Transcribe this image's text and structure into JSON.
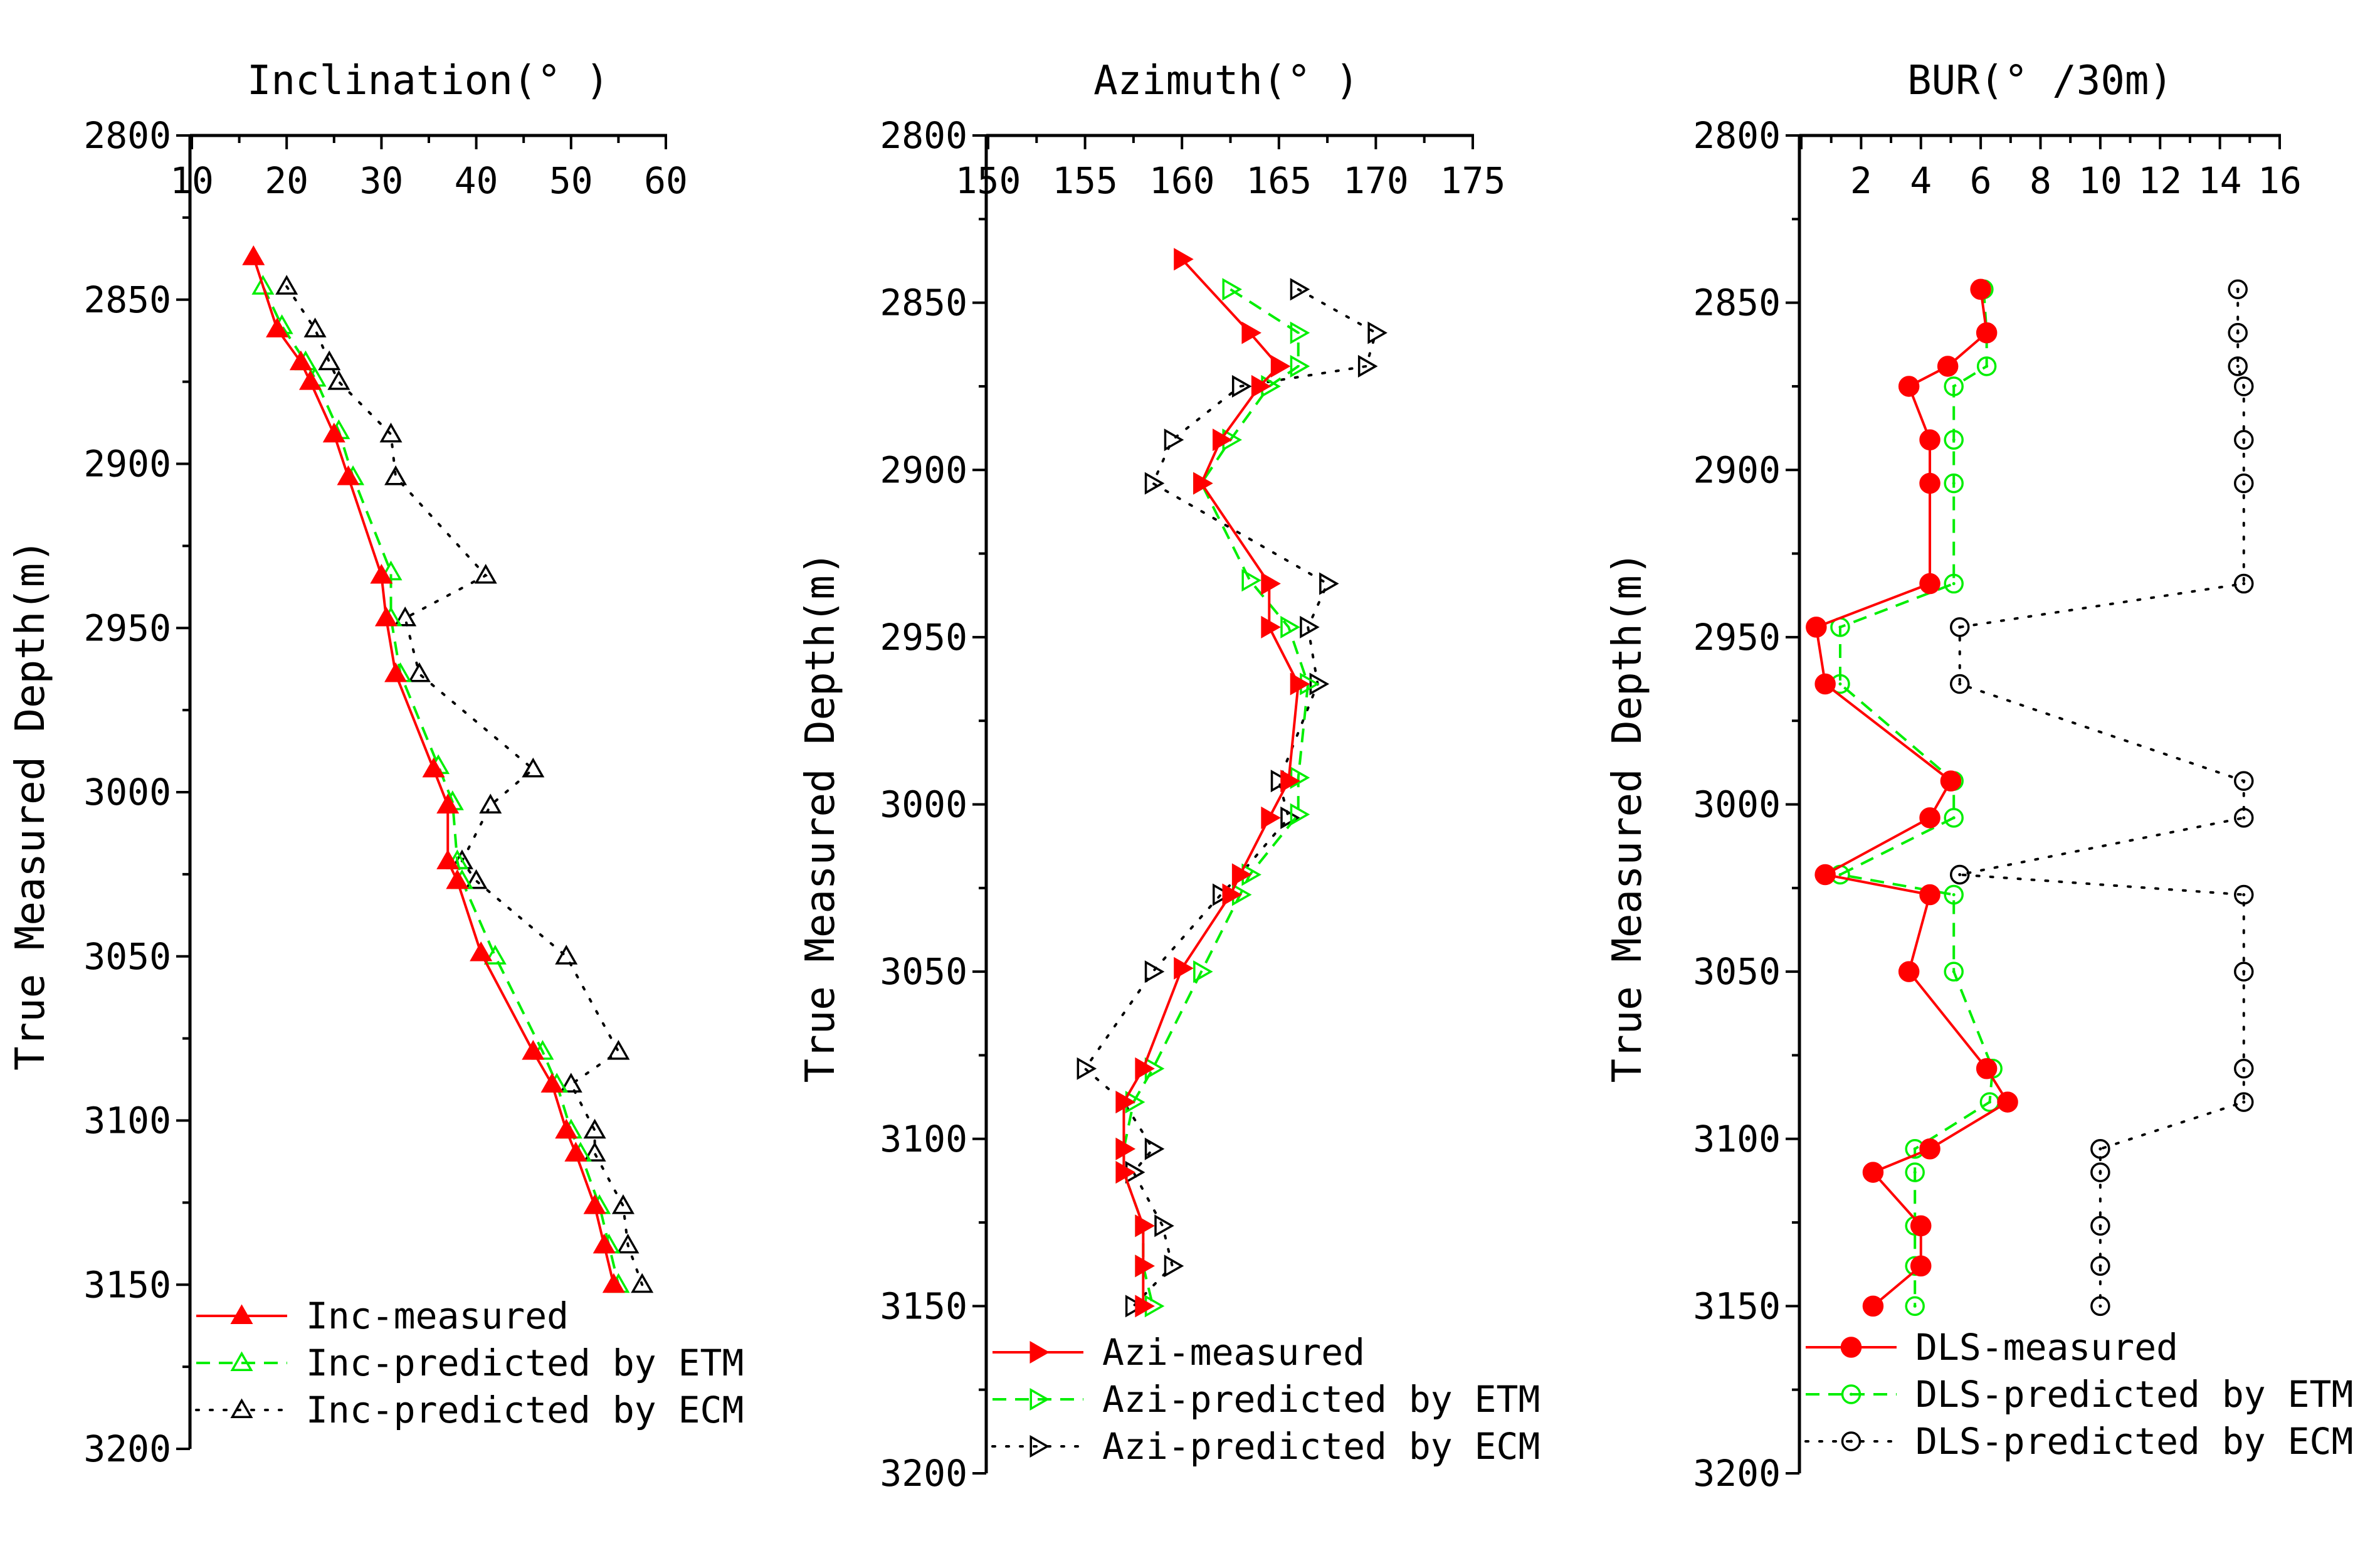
{
  "chart_data": [
    {
      "type": "line",
      "title": "Inclination(° )",
      "ylabel": "True Measured Depth(m)",
      "xlim": [
        10,
        60
      ],
      "xticks": [
        10,
        20,
        30,
        40,
        50,
        60
      ],
      "ylim": [
        2800,
        3200
      ],
      "yticks": [
        2800,
        2850,
        2900,
        2950,
        3000,
        3050,
        3100,
        3150,
        3200
      ],
      "legend_position": "bottom-left",
      "series": [
        {
          "name": "Inc-measured",
          "color": "#ff0000",
          "line": "solid",
          "marker": "triangle-up-filled",
          "points": [
            [
              16.5,
              2837
            ],
            [
              19,
              2859
            ],
            [
              21.5,
              2869
            ],
            [
              22.5,
              2875
            ],
            [
              25,
              2891
            ],
            [
              26.5,
              2904
            ],
            [
              30,
              2934
            ],
            [
              30.5,
              2947
            ],
            [
              31.5,
              2964
            ],
            [
              35.5,
              2993
            ],
            [
              37,
              3004
            ],
            [
              37,
              3021
            ],
            [
              38,
              3027
            ],
            [
              40.5,
              3049
            ],
            [
              46,
              3079
            ],
            [
              48,
              3089
            ],
            [
              49.5,
              3103
            ],
            [
              50.5,
              3110
            ],
            [
              52.5,
              3126
            ],
            [
              53.5,
              3138
            ],
            [
              54.5,
              3150
            ]
          ]
        },
        {
          "name": "Inc-predicted by ETM",
          "color": "#00ee00",
          "line": "dashed",
          "marker": "triangle-up-open",
          "points": [
            [
              17.5,
              2846
            ],
            [
              19.5,
              2858
            ],
            [
              22,
              2869
            ],
            [
              23,
              2874
            ],
            [
              25.5,
              2890
            ],
            [
              27,
              2904
            ],
            [
              31,
              2933
            ],
            [
              31,
              2947
            ],
            [
              32,
              2964
            ],
            [
              36,
              2992
            ],
            [
              37.5,
              3003
            ],
            [
              38,
              3021
            ],
            [
              38.5,
              3027
            ],
            [
              42,
              3050
            ],
            [
              47,
              3079
            ],
            [
              48.5,
              3089
            ],
            [
              50,
              3103
            ],
            [
              51,
              3110
            ],
            [
              53,
              3126
            ],
            [
              54,
              3138
            ],
            [
              55,
              3150
            ]
          ]
        },
        {
          "name": "Inc-predicted by ECM",
          "color": "#000000",
          "line": "dotted",
          "marker": "triangle-up-open",
          "points": [
            [
              20,
              2846
            ],
            [
              23,
              2859
            ],
            [
              24.5,
              2869
            ],
            [
              25.5,
              2875
            ],
            [
              31,
              2891
            ],
            [
              31.5,
              2904
            ],
            [
              41,
              2934
            ],
            [
              32.5,
              2947
            ],
            [
              34,
              2964
            ],
            [
              46,
              2993
            ],
            [
              41.5,
              3004
            ],
            [
              38.5,
              3021
            ],
            [
              40,
              3027
            ],
            [
              49.5,
              3050
            ],
            [
              55,
              3079
            ],
            [
              50,
              3089
            ],
            [
              52.5,
              3103
            ],
            [
              52.5,
              3110
            ],
            [
              55.5,
              3126
            ],
            [
              56,
              3138
            ],
            [
              57.5,
              3150
            ]
          ]
        }
      ],
      "legend": [
        "Inc-measured",
        "Inc-predicted by ETM",
        "Inc-predicted by ECM"
      ]
    },
    {
      "type": "line",
      "title": "Azimuth(° )",
      "ylabel": "True Measured Depth(m)",
      "xlim": [
        150,
        175
      ],
      "xticks": [
        150,
        155,
        160,
        165,
        170,
        175
      ],
      "ylim": [
        2800,
        3200
      ],
      "yticks": [
        2800,
        2850,
        2900,
        2950,
        3000,
        3050,
        3100,
        3150,
        3200
      ],
      "legend_position": "bottom-left",
      "series": [
        {
          "name": "Azi-measured",
          "color": "#ff0000",
          "line": "solid",
          "marker": "triangle-right-filled",
          "points": [
            [
              160,
              2837
            ],
            [
              163.5,
              2859
            ],
            [
              165,
              2869
            ],
            [
              164,
              2875
            ],
            [
              162,
              2891
            ],
            [
              161,
              2904
            ],
            [
              164.5,
              2934
            ],
            [
              164.5,
              2947
            ],
            [
              166,
              2964
            ],
            [
              165.5,
              2993
            ],
            [
              164.5,
              3004
            ],
            [
              163,
              3021
            ],
            [
              162.5,
              3027
            ],
            [
              160,
              3049
            ],
            [
              158,
              3079
            ],
            [
              157,
              3089
            ],
            [
              157,
              3103
            ],
            [
              157,
              3110
            ],
            [
              158,
              3126
            ],
            [
              158,
              3138
            ],
            [
              158,
              3150
            ]
          ]
        },
        {
          "name": "Azi-predicted by ETM",
          "color": "#00ee00",
          "line": "dashed",
          "marker": "triangle-right-open",
          "points": [
            [
              162.5,
              2846
            ],
            [
              166,
              2859
            ],
            [
              166,
              2869
            ],
            [
              164.5,
              2875
            ],
            [
              162.5,
              2891
            ],
            [
              161,
              2904
            ],
            [
              163.5,
              2933
            ],
            [
              165.5,
              2947
            ],
            [
              166.5,
              2964
            ],
            [
              166,
              2992
            ],
            [
              166,
              3003
            ],
            [
              163.5,
              3021
            ],
            [
              163,
              3027
            ],
            [
              161,
              3050
            ],
            [
              158.5,
              3079
            ],
            [
              157.5,
              3089
            ],
            [
              157,
              3103
            ],
            [
              157,
              3110
            ],
            [
              158,
              3126
            ],
            [
              158,
              3138
            ],
            [
              158.5,
              3150
            ]
          ]
        },
        {
          "name": "Azi-predicted by ECM",
          "color": "#000000",
          "line": "dotted",
          "marker": "triangle-right-open",
          "points": [
            [
              166,
              2846
            ],
            [
              170,
              2859
            ],
            [
              169.5,
              2869
            ],
            [
              163,
              2875
            ],
            [
              159.5,
              2891
            ],
            [
              158.5,
              2904
            ],
            [
              167.5,
              2934
            ],
            [
              166.5,
              2947
            ],
            [
              167,
              2964
            ],
            [
              165,
              2993
            ],
            [
              165.5,
              3004
            ],
            [
              163,
              3021
            ],
            [
              162,
              3027
            ],
            [
              158.5,
              3050
            ],
            [
              155,
              3079
            ],
            [
              157,
              3089
            ],
            [
              158.5,
              3103
            ],
            [
              157.5,
              3110
            ],
            [
              159,
              3126
            ],
            [
              159.5,
              3138
            ],
            [
              157.5,
              3150
            ]
          ]
        }
      ],
      "legend": [
        "Azi-measured",
        "Azi-predicted by ETM",
        "Azi-predicted by ECM"
      ]
    },
    {
      "type": "line",
      "title": "BUR(° /30m)",
      "ylabel": "True Measured Depth(m)",
      "xlim": [
        0,
        16
      ],
      "xticks": [
        2,
        4,
        6,
        8,
        10,
        12,
        14,
        16
      ],
      "ylim": [
        2800,
        3200
      ],
      "yticks": [
        2800,
        2850,
        2900,
        2950,
        3000,
        3050,
        3100,
        3150,
        3200
      ],
      "legend_position": "bottom-left",
      "series": [
        {
          "name": "DLS-measured",
          "color": "#ff0000",
          "line": "solid",
          "marker": "circle-filled",
          "points": [
            [
              6,
              2846
            ],
            [
              6.2,
              2859
            ],
            [
              4.9,
              2869
            ],
            [
              3.6,
              2875
            ],
            [
              4.3,
              2891
            ],
            [
              4.3,
              2904
            ],
            [
              4.3,
              2934
            ],
            [
              0.5,
              2947
            ],
            [
              0.8,
              2964
            ],
            [
              5,
              2993
            ],
            [
              4.3,
              3004
            ],
            [
              0.8,
              3021
            ],
            [
              4.3,
              3027
            ],
            [
              3.6,
              3050
            ],
            [
              6.2,
              3079
            ],
            [
              6.9,
              3089
            ],
            [
              4.3,
              3103
            ],
            [
              2.4,
              3110
            ],
            [
              4,
              3126
            ],
            [
              4,
              3138
            ],
            [
              2.4,
              3150
            ]
          ]
        },
        {
          "name": "DLS-predicted by ETM",
          "color": "#00ee00",
          "line": "dashed",
          "marker": "circle-open",
          "points": [
            [
              6.1,
              2846
            ],
            [
              6.2,
              2859
            ],
            [
              6.2,
              2869
            ],
            [
              5.1,
              2875
            ],
            [
              5.1,
              2891
            ],
            [
              5.1,
              2904
            ],
            [
              5.1,
              2934
            ],
            [
              1.3,
              2947
            ],
            [
              1.3,
              2964
            ],
            [
              5.1,
              2993
            ],
            [
              5.1,
              3004
            ],
            [
              1.3,
              3021
            ],
            [
              5.1,
              3027
            ],
            [
              5.1,
              3050
            ],
            [
              6.4,
              3079
            ],
            [
              6.3,
              3089
            ],
            [
              3.8,
              3103
            ],
            [
              3.8,
              3110
            ],
            [
              3.8,
              3126
            ],
            [
              3.8,
              3138
            ],
            [
              3.8,
              3150
            ]
          ]
        },
        {
          "name": "DLS-predicted by ECM",
          "color": "#000000",
          "line": "dotted",
          "marker": "circle-open",
          "points": [
            [
              14.6,
              2846
            ],
            [
              14.6,
              2859
            ],
            [
              14.6,
              2869
            ],
            [
              14.8,
              2875
            ],
            [
              14.8,
              2891
            ],
            [
              14.8,
              2904
            ],
            [
              14.8,
              2934
            ],
            [
              5.3,
              2947
            ],
            [
              5.3,
              2964
            ],
            [
              14.8,
              2993
            ],
            [
              14.8,
              3004
            ],
            [
              5.3,
              3021
            ],
            [
              14.8,
              3027
            ],
            [
              14.8,
              3050
            ],
            [
              14.8,
              3079
            ],
            [
              14.8,
              3089
            ],
            [
              10,
              3103
            ],
            [
              10,
              3110
            ],
            [
              10,
              3126
            ],
            [
              10,
              3138
            ],
            [
              10,
              3150
            ]
          ]
        }
      ],
      "legend": [
        "DLS-measured",
        "DLS-predicted by ETM",
        "DLS-predicted by ECM"
      ]
    }
  ]
}
